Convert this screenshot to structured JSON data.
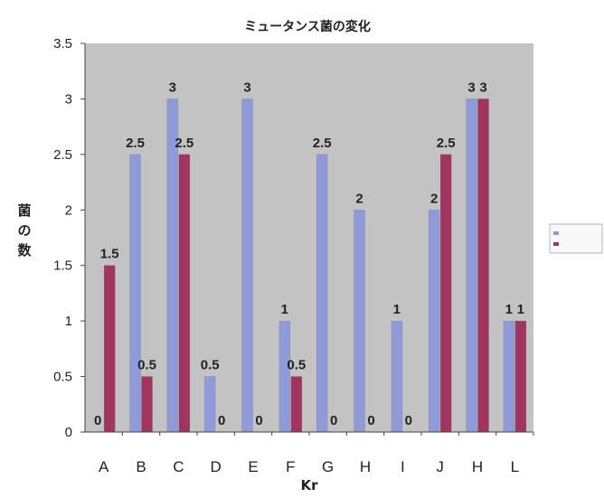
{
  "chart_data": {
    "type": "bar",
    "title": "ミュータンス菌の変化",
    "xlabel": "Kr",
    "ylabel": "菌の数",
    "ylim": [
      0,
      3.5
    ],
    "yticks": [
      "0",
      "0.5",
      "1",
      "1.5",
      "2",
      "2.5",
      "3",
      "3.5"
    ],
    "categories": [
      "A",
      "B",
      "C",
      "D",
      "E",
      "F",
      "G",
      "H",
      "I",
      "J",
      "H",
      "L"
    ],
    "series": [
      {
        "values": [
          0,
          2.5,
          3,
          0.5,
          3,
          1,
          2.5,
          2,
          1,
          2,
          3,
          1
        ],
        "labels": [
          "0",
          "2.5",
          "3",
          "0.5",
          "3",
          "1",
          "2.5",
          "2",
          "1",
          "2",
          "3",
          "1"
        ],
        "color": "#8f9ad8"
      },
      {
        "values": [
          1.5,
          0.5,
          2.5,
          0,
          0,
          0.5,
          0,
          0,
          0,
          2.5,
          3,
          1
        ],
        "labels": [
          "1.5",
          "0.5",
          "2.5",
          "0",
          "0",
          "0.5",
          "0",
          "0",
          "0",
          "2.5",
          "3",
          "1"
        ],
        "color": "#a0365f"
      }
    ],
    "legend_position": "right",
    "grid": false
  }
}
